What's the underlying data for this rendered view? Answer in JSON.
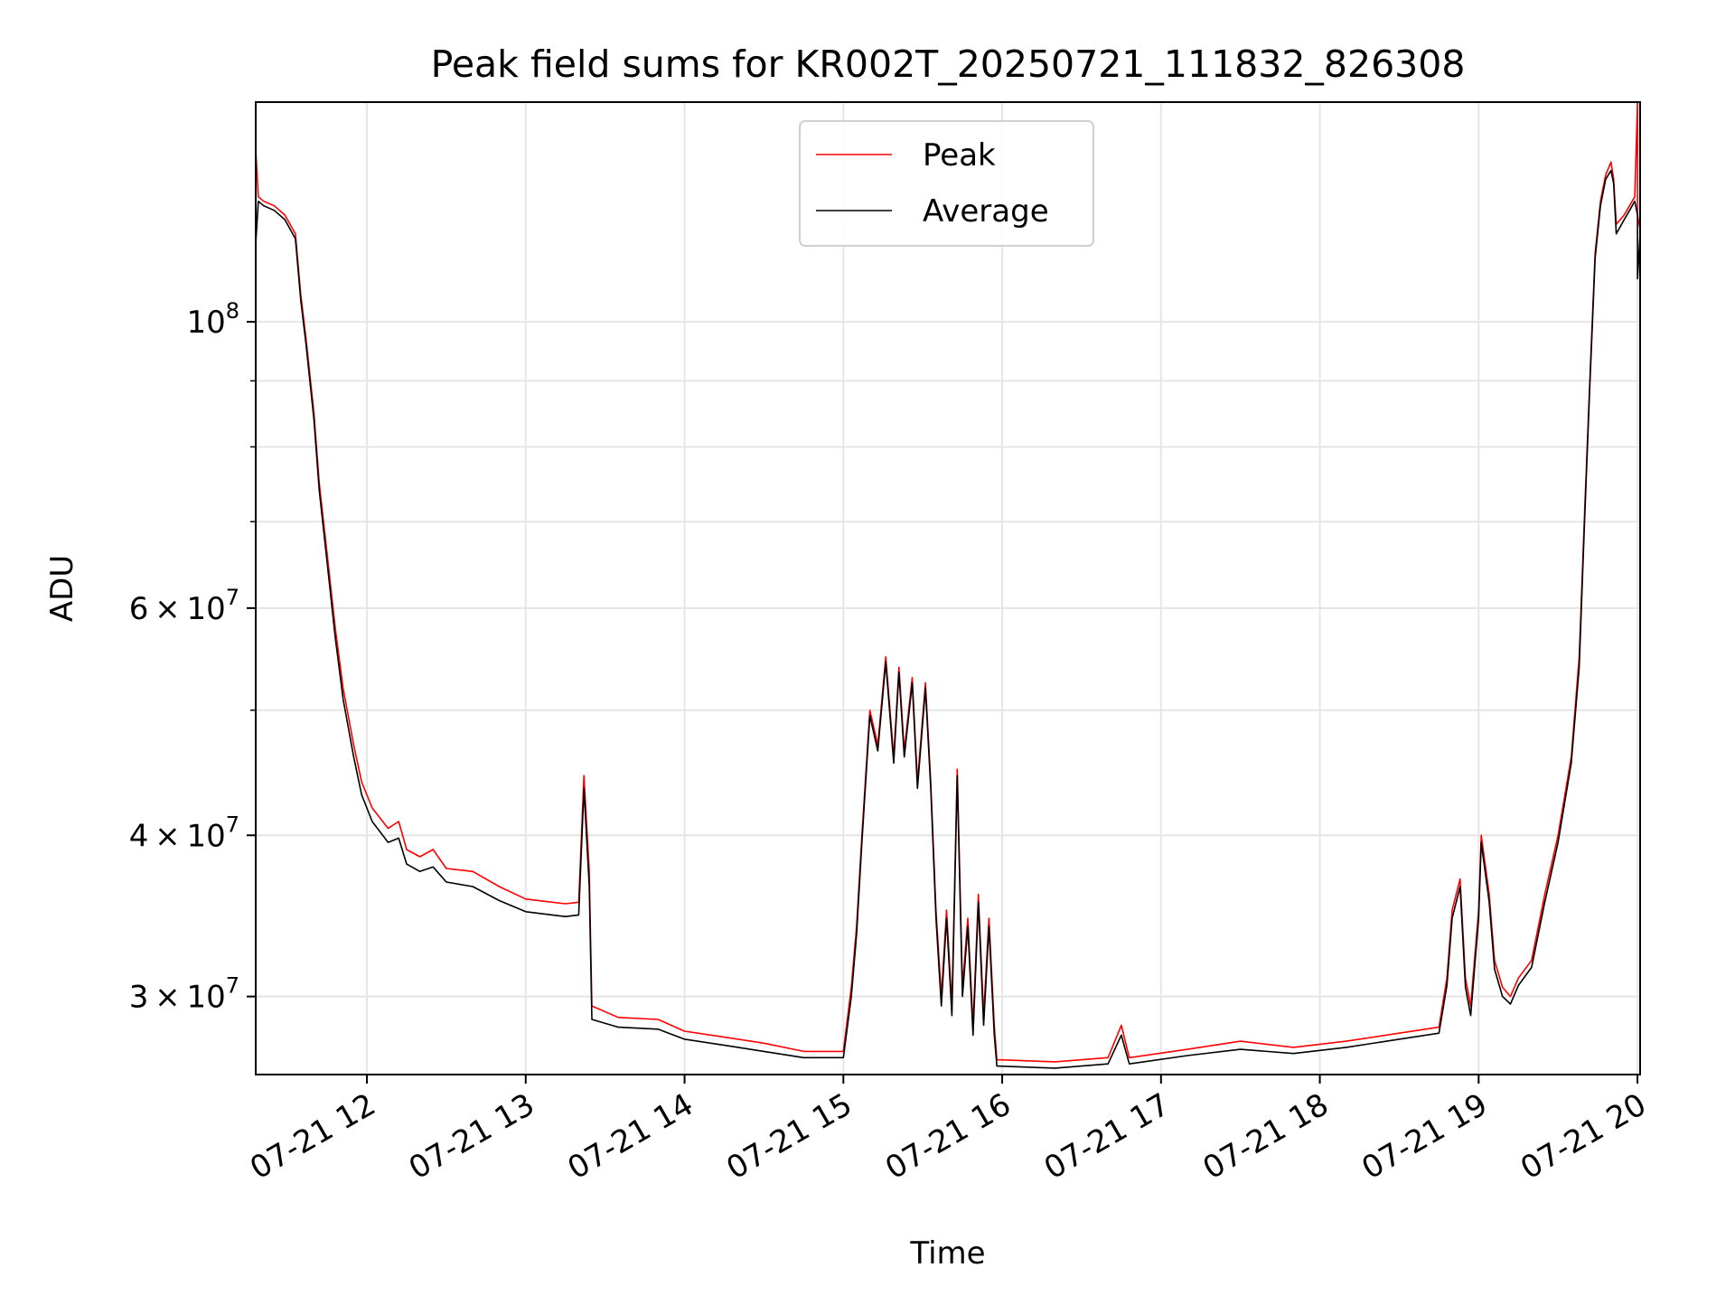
{
  "chart_data": {
    "type": "line",
    "title": "Peak field sums for KR002T_20250721_111832_826308",
    "xlabel": "Time",
    "ylabel": "ADU",
    "y_scale": "log",
    "x_range": [
      "2025-07-21 11:18",
      "2025-07-21 20:01"
    ],
    "ylim": [
      26100000,
      148000000
    ],
    "grid": true,
    "legend_position": "top-center",
    "x_ticks": [
      {
        "time": "2025-07-21 12:00",
        "label": "07-21 12"
      },
      {
        "time": "2025-07-21 13:00",
        "label": "07-21 13"
      },
      {
        "time": "2025-07-21 14:00",
        "label": "07-21 14"
      },
      {
        "time": "2025-07-21 15:00",
        "label": "07-21 15"
      },
      {
        "time": "2025-07-21 16:00",
        "label": "07-21 16"
      },
      {
        "time": "2025-07-21 17:00",
        "label": "07-21 17"
      },
      {
        "time": "2025-07-21 18:00",
        "label": "07-21 18"
      },
      {
        "time": "2025-07-21 19:00",
        "label": "07-21 19"
      },
      {
        "time": "2025-07-21 20:00",
        "label": "07-21 20"
      }
    ],
    "y_ticks": [
      {
        "value": 30000000,
        "mantissa": "3",
        "times": "×",
        "base": "10",
        "exp": "7"
      },
      {
        "value": 40000000,
        "mantissa": "4",
        "times": "×",
        "base": "10",
        "exp": "7"
      },
      {
        "value": 60000000,
        "mantissa": "6",
        "times": "×",
        "base": "10",
        "exp": "7"
      },
      {
        "value": 100000000,
        "mantissa": "",
        "times": "",
        "base": "10",
        "exp": "8"
      }
    ],
    "y_minor_ticks": [
      30000000,
      40000000,
      50000000,
      60000000,
      70000000,
      80000000,
      90000000
    ],
    "series": [
      {
        "name": "Peak",
        "color": "#ff0000",
        "points": [
          [
            "2025-07-21 11:18",
            136000000
          ],
          [
            "2025-07-21 11:19",
            125000000
          ],
          [
            "2025-07-21 11:21",
            124000000
          ],
          [
            "2025-07-21 11:25",
            123000000
          ],
          [
            "2025-07-21 11:29",
            121000000
          ],
          [
            "2025-07-21 11:33",
            117000000
          ],
          [
            "2025-07-21 11:35",
            105000000
          ],
          [
            "2025-07-21 11:37",
            97000000
          ],
          [
            "2025-07-21 11:40",
            85000000
          ],
          [
            "2025-07-21 11:42",
            75000000
          ],
          [
            "2025-07-21 11:45",
            66000000
          ],
          [
            "2025-07-21 11:48",
            58000000
          ],
          [
            "2025-07-21 11:51",
            52000000
          ],
          [
            "2025-07-21 11:55",
            47000000
          ],
          [
            "2025-07-21 11:58",
            44000000
          ],
          [
            "2025-07-21 12:02",
            42000000
          ],
          [
            "2025-07-21 12:08",
            40500000
          ],
          [
            "2025-07-21 12:12",
            41000000
          ],
          [
            "2025-07-21 12:15",
            39000000
          ],
          [
            "2025-07-21 12:20",
            38500000
          ],
          [
            "2025-07-21 12:25",
            39000000
          ],
          [
            "2025-07-21 12:30",
            37700000
          ],
          [
            "2025-07-21 12:40",
            37500000
          ],
          [
            "2025-07-21 12:50",
            36500000
          ],
          [
            "2025-07-21 13:00",
            35700000
          ],
          [
            "2025-07-21 13:10",
            35500000
          ],
          [
            "2025-07-21 13:15",
            35400000
          ],
          [
            "2025-07-21 13:20",
            35500000
          ],
          [
            "2025-07-21 13:22",
            44500000
          ],
          [
            "2025-07-21 13:24",
            37500000
          ],
          [
            "2025-07-21 13:25",
            29500000
          ],
          [
            "2025-07-21 13:35",
            28900000
          ],
          [
            "2025-07-21 13:50",
            28800000
          ],
          [
            "2025-07-21 14:00",
            28200000
          ],
          [
            "2025-07-21 14:15",
            27900000
          ],
          [
            "2025-07-21 14:30",
            27600000
          ],
          [
            "2025-07-21 14:45",
            27200000
          ],
          [
            "2025-07-21 15:00",
            27200000
          ],
          [
            "2025-07-21 15:03",
            30500000
          ],
          [
            "2025-07-21 15:05",
            34000000
          ],
          [
            "2025-07-21 15:07",
            40000000
          ],
          [
            "2025-07-21 15:10",
            50000000
          ],
          [
            "2025-07-21 15:13",
            47000000
          ],
          [
            "2025-07-21 15:16",
            55000000
          ],
          [
            "2025-07-21 15:19",
            46000000
          ],
          [
            "2025-07-21 15:21",
            54000000
          ],
          [
            "2025-07-21 15:23",
            46500000
          ],
          [
            "2025-07-21 15:26",
            53000000
          ],
          [
            "2025-07-21 15:28",
            44000000
          ],
          [
            "2025-07-21 15:31",
            52500000
          ],
          [
            "2025-07-21 15:33",
            44000000
          ],
          [
            "2025-07-21 15:35",
            35000000
          ],
          [
            "2025-07-21 15:37",
            30000000
          ],
          [
            "2025-07-21 15:39",
            35000000
          ],
          [
            "2025-07-21 15:41",
            29500000
          ],
          [
            "2025-07-21 15:43",
            45000000
          ],
          [
            "2025-07-21 15:45",
            30500000
          ],
          [
            "2025-07-21 15:47",
            34500000
          ],
          [
            "2025-07-21 15:49",
            28500000
          ],
          [
            "2025-07-21 15:51",
            36000000
          ],
          [
            "2025-07-21 15:53",
            29000000
          ],
          [
            "2025-07-21 15:55",
            34500000
          ],
          [
            "2025-07-21 15:57",
            28500000
          ],
          [
            "2025-07-21 15:58",
            26800000
          ],
          [
            "2025-07-21 16:20",
            26700000
          ],
          [
            "2025-07-21 16:40",
            26900000
          ],
          [
            "2025-07-21 16:45",
            28500000
          ],
          [
            "2025-07-21 16:48",
            26900000
          ],
          [
            "2025-07-21 17:10",
            27300000
          ],
          [
            "2025-07-21 17:30",
            27700000
          ],
          [
            "2025-07-21 17:50",
            27400000
          ],
          [
            "2025-07-21 18:10",
            27700000
          ],
          [
            "2025-07-21 18:30",
            28100000
          ],
          [
            "2025-07-21 18:45",
            28400000
          ],
          [
            "2025-07-21 18:48",
            31000000
          ],
          [
            "2025-07-21 18:50",
            35000000
          ],
          [
            "2025-07-21 18:53",
            37000000
          ],
          [
            "2025-07-21 18:55",
            31000000
          ],
          [
            "2025-07-21 18:57",
            29500000
          ],
          [
            "2025-07-21 19:00",
            35000000
          ],
          [
            "2025-07-21 19:01",
            40000000
          ],
          [
            "2025-07-21 19:04",
            36000000
          ],
          [
            "2025-07-21 19:06",
            32000000
          ],
          [
            "2025-07-21 19:09",
            30500000
          ],
          [
            "2025-07-21 19:12",
            30000000
          ],
          [
            "2025-07-21 19:15",
            31000000
          ],
          [
            "2025-07-21 19:20",
            32000000
          ],
          [
            "2025-07-21 19:25",
            36000000
          ],
          [
            "2025-07-21 19:30",
            40000000
          ],
          [
            "2025-07-21 19:35",
            46000000
          ],
          [
            "2025-07-21 19:38",
            55000000
          ],
          [
            "2025-07-21 19:40",
            71000000
          ],
          [
            "2025-07-21 19:42",
            90000000
          ],
          [
            "2025-07-21 19:44",
            113000000
          ],
          [
            "2025-07-21 19:46",
            124000000
          ],
          [
            "2025-07-21 19:48",
            130000000
          ],
          [
            "2025-07-21 19:50",
            133000000
          ],
          [
            "2025-07-21 19:51",
            129000000
          ],
          [
            "2025-07-21 19:52",
            119000000
          ],
          [
            "2025-07-21 19:55",
            121000000
          ],
          [
            "2025-07-21 19:57",
            123000000
          ],
          [
            "2025-07-21 19:59",
            125000000
          ],
          [
            "2025-07-21 20:00",
            148000000
          ],
          [
            "2025-07-21 20:00",
            121000000
          ],
          [
            "2025-07-21 20:01",
            118000000
          ]
        ]
      },
      {
        "name": "Average",
        "color": "#000000",
        "points": [
          [
            "2025-07-21 11:18",
            115000000
          ],
          [
            "2025-07-21 11:19",
            124000000
          ],
          [
            "2025-07-21 11:21",
            123000000
          ],
          [
            "2025-07-21 11:25",
            122000000
          ],
          [
            "2025-07-21 11:29",
            120000000
          ],
          [
            "2025-07-21 11:33",
            116000000
          ],
          [
            "2025-07-21 11:35",
            104000000
          ],
          [
            "2025-07-21 11:37",
            96000000
          ],
          [
            "2025-07-21 11:40",
            84000000
          ],
          [
            "2025-07-21 11:42",
            74000000
          ],
          [
            "2025-07-21 11:45",
            65000000
          ],
          [
            "2025-07-21 11:48",
            57000000
          ],
          [
            "2025-07-21 11:51",
            51000000
          ],
          [
            "2025-07-21 11:55",
            46000000
          ],
          [
            "2025-07-21 11:58",
            43000000
          ],
          [
            "2025-07-21 12:02",
            41000000
          ],
          [
            "2025-07-21 12:08",
            39500000
          ],
          [
            "2025-07-21 12:12",
            39800000
          ],
          [
            "2025-07-21 12:15",
            38000000
          ],
          [
            "2025-07-21 12:20",
            37500000
          ],
          [
            "2025-07-21 12:25",
            37800000
          ],
          [
            "2025-07-21 12:30",
            36800000
          ],
          [
            "2025-07-21 12:40",
            36500000
          ],
          [
            "2025-07-21 12:50",
            35600000
          ],
          [
            "2025-07-21 13:00",
            34900000
          ],
          [
            "2025-07-21 13:10",
            34700000
          ],
          [
            "2025-07-21 13:15",
            34600000
          ],
          [
            "2025-07-21 13:20",
            34700000
          ],
          [
            "2025-07-21 13:22",
            43500000
          ],
          [
            "2025-07-21 13:24",
            36500000
          ],
          [
            "2025-07-21 13:25",
            28800000
          ],
          [
            "2025-07-21 13:35",
            28400000
          ],
          [
            "2025-07-21 13:50",
            28300000
          ],
          [
            "2025-07-21 14:00",
            27800000
          ],
          [
            "2025-07-21 14:15",
            27500000
          ],
          [
            "2025-07-21 14:30",
            27200000
          ],
          [
            "2025-07-21 14:45",
            26900000
          ],
          [
            "2025-07-21 15:00",
            26900000
          ],
          [
            "2025-07-21 15:03",
            30000000
          ],
          [
            "2025-07-21 15:05",
            33500000
          ],
          [
            "2025-07-21 15:07",
            39500000
          ],
          [
            "2025-07-21 15:10",
            49500000
          ],
          [
            "2025-07-21 15:13",
            46500000
          ],
          [
            "2025-07-21 15:16",
            54500000
          ],
          [
            "2025-07-21 15:19",
            45500000
          ],
          [
            "2025-07-21 15:21",
            53500000
          ],
          [
            "2025-07-21 15:23",
            46000000
          ],
          [
            "2025-07-21 15:26",
            52500000
          ],
          [
            "2025-07-21 15:28",
            43500000
          ],
          [
            "2025-07-21 15:31",
            52000000
          ],
          [
            "2025-07-21 15:33",
            43500000
          ],
          [
            "2025-07-21 15:35",
            34500000
          ],
          [
            "2025-07-21 15:37",
            29500000
          ],
          [
            "2025-07-21 15:39",
            34500000
          ],
          [
            "2025-07-21 15:41",
            29000000
          ],
          [
            "2025-07-21 15:43",
            44500000
          ],
          [
            "2025-07-21 15:45",
            30000000
          ],
          [
            "2025-07-21 15:47",
            34000000
          ],
          [
            "2025-07-21 15:49",
            28000000
          ],
          [
            "2025-07-21 15:51",
            35500000
          ],
          [
            "2025-07-21 15:53",
            28500000
          ],
          [
            "2025-07-21 15:55",
            34000000
          ],
          [
            "2025-07-21 15:57",
            28000000
          ],
          [
            "2025-07-21 15:58",
            26500000
          ],
          [
            "2025-07-21 16:20",
            26400000
          ],
          [
            "2025-07-21 16:40",
            26600000
          ],
          [
            "2025-07-21 16:45",
            28000000
          ],
          [
            "2025-07-21 16:48",
            26600000
          ],
          [
            "2025-07-21 17:10",
            27000000
          ],
          [
            "2025-07-21 17:30",
            27300000
          ],
          [
            "2025-07-21 17:50",
            27100000
          ],
          [
            "2025-07-21 18:10",
            27400000
          ],
          [
            "2025-07-21 18:30",
            27800000
          ],
          [
            "2025-07-21 18:45",
            28100000
          ],
          [
            "2025-07-21 18:48",
            30600000
          ],
          [
            "2025-07-21 18:50",
            34500000
          ],
          [
            "2025-07-21 18:53",
            36500000
          ],
          [
            "2025-07-21 18:55",
            30500000
          ],
          [
            "2025-07-21 18:57",
            29000000
          ],
          [
            "2025-07-21 19:00",
            34500000
          ],
          [
            "2025-07-21 19:01",
            39500000
          ],
          [
            "2025-07-21 19:04",
            35500000
          ],
          [
            "2025-07-21 19:06",
            31500000
          ],
          [
            "2025-07-21 19:09",
            30000000
          ],
          [
            "2025-07-21 19:12",
            29600000
          ],
          [
            "2025-07-21 19:15",
            30600000
          ],
          [
            "2025-07-21 19:20",
            31600000
          ],
          [
            "2025-07-21 19:25",
            35500000
          ],
          [
            "2025-07-21 19:30",
            39500000
          ],
          [
            "2025-07-21 19:35",
            45500000
          ],
          [
            "2025-07-21 19:38",
            54000000
          ],
          [
            "2025-07-21 19:40",
            70000000
          ],
          [
            "2025-07-21 19:42",
            89000000
          ],
          [
            "2025-07-21 19:44",
            112000000
          ],
          [
            "2025-07-21 19:46",
            123000000
          ],
          [
            "2025-07-21 19:48",
            129000000
          ],
          [
            "2025-07-21 19:50",
            131000000
          ],
          [
            "2025-07-21 19:51",
            128000000
          ],
          [
            "2025-07-21 19:52",
            117000000
          ],
          [
            "2025-07-21 19:55",
            120000000
          ],
          [
            "2025-07-21 19:57",
            122000000
          ],
          [
            "2025-07-21 19:59",
            124000000
          ],
          [
            "2025-07-21 20:00",
            121000000
          ],
          [
            "2025-07-21 20:00",
            108000000
          ],
          [
            "2025-07-21 20:01",
            117000000
          ]
        ]
      }
    ],
    "legend": [
      {
        "label": "Peak",
        "color": "#ff0000"
      },
      {
        "label": "Average",
        "color": "#000000"
      }
    ]
  }
}
